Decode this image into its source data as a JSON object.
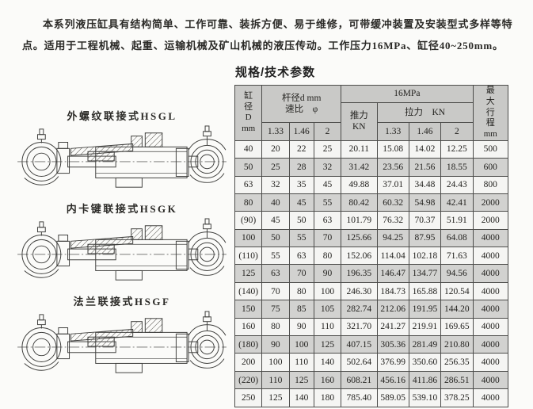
{
  "intro": {
    "text": "本系列液压缸具有结构简单、工作可靠、装拆方便、易于维修，可带缓冲装置及安装型式多样等特点。适用于工程机械、起重、运输机械及矿山机械的液压传动。工作压力16MPa、缸径40~250mm。"
  },
  "figures": [
    {
      "label": "外螺纹联接式HSGL"
    },
    {
      "label": "内卡键联接式HSGK"
    },
    {
      "label": "法兰联接式HSGF"
    }
  ],
  "table": {
    "title": "规格/技术参数",
    "header": {
      "bore": "缸\n径\nD\nmm",
      "rod_group": "杆径d mm\n速比　φ",
      "pressure": "16MPa",
      "push": "推力\nKN",
      "pull": "拉力　KN",
      "rod_ratios": [
        "1.33",
        "1.46",
        "2"
      ],
      "pull_ratios": [
        "1.33",
        "1.46",
        "2"
      ],
      "stroke": "最\n大\n行\n程\nmm"
    },
    "rows": [
      [
        "40",
        "20",
        "22",
        "25",
        "20.11",
        "15.08",
        "14.02",
        "12.25",
        "500"
      ],
      [
        "50",
        "25",
        "28",
        "32",
        "31.42",
        "23.56",
        "21.56",
        "18.55",
        "600"
      ],
      [
        "63",
        "32",
        "35",
        "45",
        "49.88",
        "37.01",
        "34.48",
        "24.43",
        "800"
      ],
      [
        "80",
        "40",
        "45",
        "55",
        "80.42",
        "60.32",
        "54.98",
        "42.41",
        "2000"
      ],
      [
        "(90)",
        "45",
        "50",
        "63",
        "101.79",
        "76.32",
        "70.37",
        "51.91",
        "2000"
      ],
      [
        "100",
        "50",
        "55",
        "70",
        "125.66",
        "94.25",
        "87.95",
        "64.08",
        "4000"
      ],
      [
        "(110)",
        "55",
        "63",
        "80",
        "152.06",
        "114.04",
        "102.18",
        "71.63",
        "4000"
      ],
      [
        "125",
        "63",
        "70",
        "90",
        "196.35",
        "146.47",
        "134.77",
        "94.56",
        "4000"
      ],
      [
        "(140)",
        "70",
        "80",
        "100",
        "246.30",
        "184.73",
        "165.88",
        "120.54",
        "4000"
      ],
      [
        "150",
        "75",
        "85",
        "105",
        "282.74",
        "212.06",
        "191.95",
        "144.20",
        "4000"
      ],
      [
        "160",
        "80",
        "90",
        "110",
        "321.70",
        "241.27",
        "219.91",
        "169.65",
        "4000"
      ],
      [
        "(180)",
        "90",
        "100",
        "125",
        "407.15",
        "305.36",
        "281.49",
        "210.80",
        "4000"
      ],
      [
        "200",
        "100",
        "110",
        "140",
        "502.64",
        "376.99",
        "350.60",
        "256.35",
        "4000"
      ],
      [
        "(220)",
        "110",
        "125",
        "160",
        "608.21",
        "456.16",
        "411.86",
        "286.51",
        "4000"
      ],
      [
        "250",
        "125",
        "140",
        "180",
        "785.40",
        "589.05",
        "539.10",
        "378.25",
        "4000"
      ]
    ]
  },
  "colors": {
    "page_bg": "#fbfbf9",
    "header_bg": "#c9c9c7",
    "row_bg": "#f5f5f3",
    "row_alt_bg": "#d2d2d0",
    "border": "#4c4c4a",
    "text": "#23221f"
  }
}
